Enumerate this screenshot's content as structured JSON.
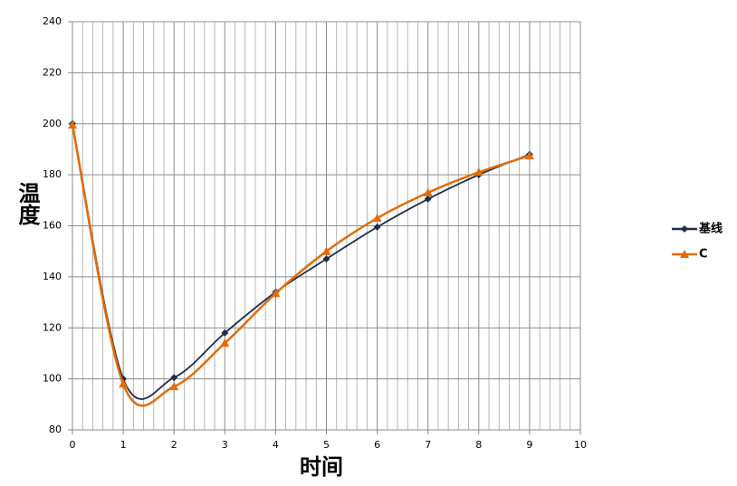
{
  "chart_data": {
    "type": "line",
    "x_label": "时间",
    "y_label": "温度",
    "x": [
      0,
      1,
      2,
      3,
      4,
      5,
      6,
      7,
      8,
      9
    ],
    "series": [
      {
        "name": "基线",
        "color": "#1f2d4a",
        "marker": "diamond",
        "values": [
          200,
          100,
          100.5,
          118,
          134,
          147,
          159.5,
          170.5,
          180,
          188
        ]
      },
      {
        "name": "C",
        "color": "#e36c09",
        "marker": "triangle",
        "values": [
          199.5,
          98,
          97,
          114,
          133.5,
          150,
          163,
          173,
          181,
          187.5
        ]
      }
    ],
    "xlim": [
      0,
      10
    ],
    "xticks": [
      0,
      1,
      2,
      3,
      4,
      5,
      6,
      7,
      8,
      9,
      10
    ],
    "ylim": [
      80,
      240
    ],
    "yticks": [
      80,
      100,
      120,
      140,
      160,
      180,
      200,
      220,
      240
    ],
    "grid": true,
    "smooth": true,
    "legend": "right"
  }
}
